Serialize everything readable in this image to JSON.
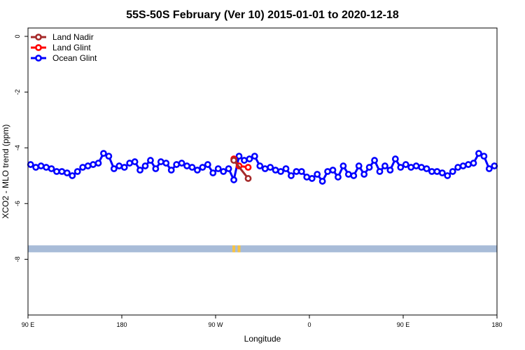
{
  "chart_data": {
    "type": "line",
    "title": "55S-50S February (Ver 10)   2015-01-01 to 2020-12-18",
    "xlabel": "Longitude",
    "ylabel": "XCO2 - MLO trend (ppm)",
    "xlim": [
      0,
      360
    ],
    "ylim": [
      -10,
      0.3
    ],
    "x_tick_values": [
      0,
      72,
      144,
      216,
      288,
      360
    ],
    "x_tick_labels": [
      "90 E",
      "180",
      "90 W",
      "0",
      "90 E",
      "180"
    ],
    "y_tick_values": [
      0,
      -2,
      -4,
      -6,
      -8
    ],
    "y_tick_labels": [
      "0",
      "-2",
      "-4",
      "-6",
      "-8"
    ],
    "legend_position": "top-left",
    "grid": false,
    "series": [
      {
        "name": "Land Nadir",
        "color": "#a52a2a",
        "x": [
          158,
          169
        ],
        "y": [
          -4.45,
          -5.1
        ]
      },
      {
        "name": "Land Glint",
        "color": "#ff0000",
        "x": [
          158,
          162,
          169
        ],
        "y": [
          -4.4,
          -4.65,
          -4.7
        ]
      },
      {
        "name": "Ocean Glint",
        "color": "#0000ff",
        "x": [
          2,
          6,
          10,
          14,
          18,
          22,
          26,
          30,
          34,
          38,
          42,
          46,
          50,
          54,
          58,
          62,
          66,
          70,
          74,
          78,
          82,
          86,
          90,
          94,
          98,
          102,
          106,
          110,
          114,
          118,
          122,
          126,
          130,
          134,
          138,
          142,
          146,
          150,
          154,
          158,
          162,
          166,
          170,
          174,
          178,
          182,
          186,
          190,
          194,
          198,
          202,
          206,
          210,
          214,
          218,
          222,
          226,
          230,
          234,
          238,
          242,
          246,
          250,
          254,
          258,
          262,
          266,
          270,
          274,
          278,
          282,
          286,
          290,
          294,
          298,
          302,
          306,
          310,
          314,
          318,
          322,
          326,
          330,
          334,
          338,
          342,
          346,
          350,
          354,
          358
        ],
        "y": [
          -4.6,
          -4.7,
          -4.65,
          -4.7,
          -4.75,
          -4.85,
          -4.85,
          -4.9,
          -5.0,
          -4.85,
          -4.7,
          -4.65,
          -4.6,
          -4.55,
          -4.2,
          -4.3,
          -4.75,
          -4.65,
          -4.7,
          -4.55,
          -4.5,
          -4.8,
          -4.65,
          -4.45,
          -4.75,
          -4.5,
          -4.55,
          -4.8,
          -4.6,
          -4.55,
          -4.65,
          -4.7,
          -4.8,
          -4.7,
          -4.6,
          -4.9,
          -4.75,
          -4.85,
          -4.75,
          -5.15,
          -4.3,
          -4.45,
          -4.4,
          -4.3,
          -4.65,
          -4.75,
          -4.7,
          -4.8,
          -4.85,
          -4.75,
          -5.0,
          -4.85,
          -4.85,
          -5.05,
          -5.1,
          -4.95,
          -5.2,
          -4.85,
          -4.8,
          -5.05,
          -4.65,
          -4.95,
          -5.0,
          -4.65,
          -4.95,
          -4.7,
          -4.45,
          -4.85,
          -4.65,
          -4.8,
          -4.4,
          -4.7,
          -4.6,
          -4.7,
          -4.65,
          -4.7,
          -4.75,
          -4.85,
          -4.85,
          -4.9,
          -5.0,
          -4.85,
          -4.7,
          -4.65,
          -4.6,
          -4.55,
          -4.2,
          -4.3,
          -4.75,
          -4.65
        ]
      }
    ],
    "land_strip": {
      "y_range": [
        -7.75,
        -7.5
      ],
      "color": "#a8bcd8",
      "accent_color": "#f6c344",
      "accent_x": [
        158,
        162
      ]
    }
  }
}
